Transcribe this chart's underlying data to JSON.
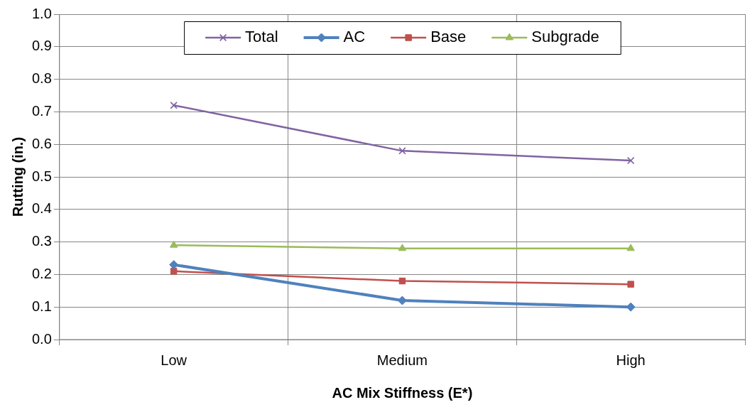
{
  "chart_data": {
    "type": "line",
    "xlabel": "AC Mix Stiffness (E*)",
    "ylabel": "Rutting (in.)",
    "categories": [
      "Low",
      "Medium",
      "High"
    ],
    "series": [
      {
        "name": "Total",
        "color": "#8064a2",
        "values": [
          0.72,
          0.58,
          0.55
        ],
        "marker": "cross"
      },
      {
        "name": "AC",
        "color": "#4f81bd",
        "values": [
          0.23,
          0.12,
          0.1
        ],
        "marker": "diamond"
      },
      {
        "name": "Base",
        "color": "#c0504d",
        "values": [
          0.21,
          0.18,
          0.17
        ],
        "marker": "square"
      },
      {
        "name": "Subgrade",
        "color": "#9bbb59",
        "values": [
          0.29,
          0.28,
          0.28
        ],
        "marker": "triangle"
      }
    ],
    "ylim": [
      0,
      1
    ],
    "yticks": [
      {
        "value": 0,
        "label": "0.0"
      },
      0.1,
      0.2,
      0.3,
      0.4,
      0.5,
      0.6,
      0.7,
      0.8,
      0.9,
      {
        "value": 1,
        "label": "1.0"
      }
    ],
    "grid": true,
    "legend": "top",
    "line_style": "solid"
  }
}
